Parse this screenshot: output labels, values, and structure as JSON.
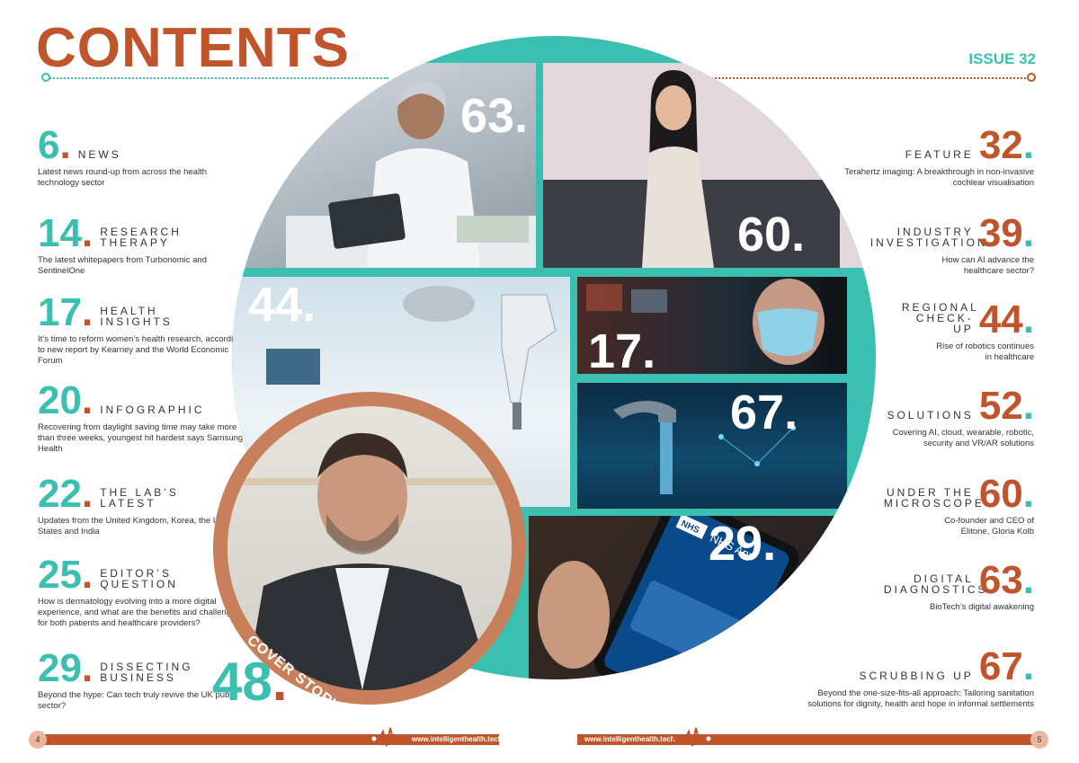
{
  "header": {
    "title": "CONTENTS",
    "issue": "ISSUE 32"
  },
  "left_entries": [
    {
      "num": "6",
      "label": "NEWS",
      "desc": "Latest news round-up from across the health technology sector"
    },
    {
      "num": "14",
      "label": "RESEARCH THERAPY",
      "desc": "The latest whitepapers from Turbonomic and SentinelOne"
    },
    {
      "num": "17",
      "label": "HEALTH INSIGHTS",
      "desc": "It’s time to reform women’s health research, according to new report by Kearney and the World Economic Forum"
    },
    {
      "num": "20",
      "label": "INFOGRAPHIC",
      "desc": "Recovering from daylight saving time may take more than three weeks, youngest hit hardest says Samsung Health"
    },
    {
      "num": "22",
      "label": "THE LAB’S LATEST",
      "desc": "Updates from the United Kingdom, Korea, the United States and India"
    },
    {
      "num": "25",
      "label": "EDITOR’S QUESTION",
      "desc": "How is dermatology evolving into a more digital experience, and what are the benefits and challenges for both patients and healthcare providers?"
    },
    {
      "num": "29",
      "label": "DISSECTING BUSINESS",
      "desc": "Beyond the hype: Can tech truly revive the UK public sector?"
    }
  ],
  "right_entries": [
    {
      "num": "32",
      "label": "FEATURE",
      "desc": "Terahertz imaging: A breakthrough in non-invasive cochlear visualisation"
    },
    {
      "num": "39",
      "label": "INDUSTRY INVESTIGATION",
      "desc": "How can AI advance the healthcare sector?"
    },
    {
      "num": "44",
      "label": "REGIONAL CHECK-UP",
      "desc": "Rise of robotics continues in healthcare"
    },
    {
      "num": "52",
      "label": "SOLUTIONS",
      "desc": "Covering AI, cloud, wearable, robotic, security and VR/AR solutions"
    },
    {
      "num": "60",
      "label": "UNDER THE MICROSCOPE",
      "desc": "Co-founder and CEO of Elitone, Gloria Kolb"
    },
    {
      "num": "63",
      "label": "DIGITAL DIAGNOSTICS",
      "desc": "BioTech’s digital awakening"
    },
    {
      "num": "67",
      "label": "SCRUBBING UP",
      "desc": "Beyond the one-size-fits-all approach: Tailoring sanitation solutions for dignity, health and hope in informal settlements"
    }
  ],
  "tiles": {
    "t63": "63.",
    "t60": "60.",
    "t44": "44.",
    "t17": "17.",
    "t67": "67.",
    "t29": "29."
  },
  "cover": {
    "label": "COVER STORY",
    "num": "48"
  },
  "footer": {
    "left_page": "4",
    "right_page": "5",
    "url": "www.intelligenthealth.tech"
  },
  "phone": {
    "app_name": "NHS App",
    "nhs_logo": "NHS"
  },
  "colors": {
    "teal": "#3bbfb1",
    "rust": "#c0552b",
    "peach": "#e9b79d"
  }
}
